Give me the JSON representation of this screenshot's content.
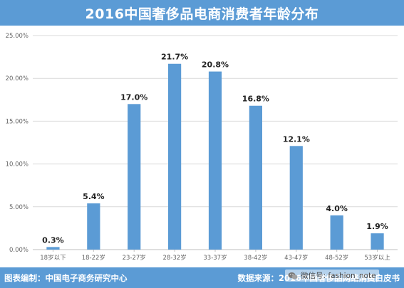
{
  "title": "2016中国奢侈品电商消费者年龄分布",
  "footer": {
    "compiled_by": "图表编制：中国电子商务研究中心",
    "source": "数据来源：2016中国奢侈品网络消费白皮书"
  },
  "watermark": {
    "text": "微信号: fashion_note",
    "icon": "wechat-icon"
  },
  "colors": {
    "bar": "#5b9bd5",
    "title_bg": "#5b9bd5",
    "footer_bg": "#5b9bd5",
    "grid": "#d9d9d9"
  },
  "chart_data": {
    "type": "bar",
    "title": "2016中国奢侈品电商消费者年龄分布",
    "categories": [
      "18岁以下",
      "18-22岁",
      "23-27岁",
      "28-32岁",
      "33-37岁",
      "38-42岁",
      "43-47岁",
      "48-52岁",
      "53岁以上"
    ],
    "values": [
      0.3,
      5.4,
      17.0,
      21.7,
      20.8,
      16.8,
      12.1,
      4.0,
      1.9
    ],
    "data_labels": [
      "0.3%",
      "5.4%",
      "17.0%",
      "21.7%",
      "20.8%",
      "16.8%",
      "12.1%",
      "4.0%",
      "1.9%"
    ],
    "y_ticks": [
      0,
      5,
      10,
      15,
      20,
      25
    ],
    "y_tick_labels": [
      "0.00%",
      "5.00%",
      "10.00%",
      "15.00%",
      "20.00%",
      "25.00%"
    ],
    "ylim": [
      0,
      25
    ],
    "xlabel": "",
    "ylabel": "",
    "grid": true,
    "legend": "none"
  }
}
